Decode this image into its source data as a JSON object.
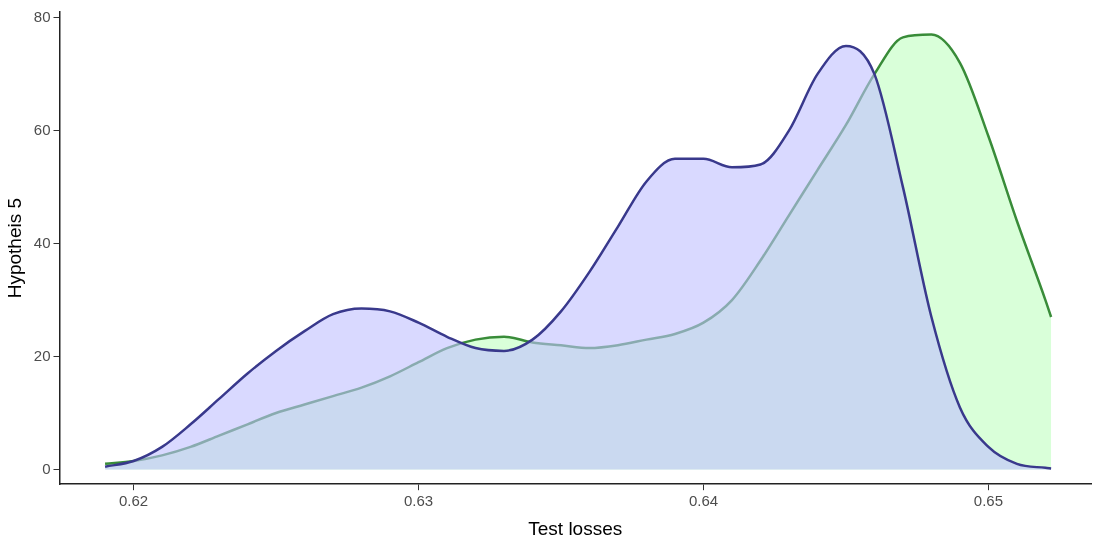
{
  "chart_data": {
    "type": "area",
    "xlabel": "Test losses",
    "ylabel": "Hypotheis 5",
    "x": [
      0.619,
      0.62,
      0.621,
      0.622,
      0.623,
      0.624,
      0.625,
      0.626,
      0.627,
      0.628,
      0.629,
      0.63,
      0.631,
      0.632,
      0.633,
      0.634,
      0.635,
      0.636,
      0.637,
      0.638,
      0.639,
      0.64,
      0.641,
      0.642,
      0.643,
      0.644,
      0.645,
      0.646,
      0.647,
      0.648,
      0.649,
      0.65,
      0.651,
      0.652,
      0.6522
    ],
    "series": [
      {
        "color": "#bfbfff",
        "values": [
          0.5,
          1.5,
          4,
          8,
          12.5,
          17,
          21,
          24.5,
          27.5,
          28.5,
          28,
          26,
          23.5,
          21.5,
          21,
          23,
          28,
          35,
          43,
          51,
          55,
          55,
          53.5,
          54,
          60,
          70,
          75,
          70,
          50,
          27,
          11,
          4,
          1,
          0.3,
          0.2
        ]
      },
      {
        "color": "#bfffbf",
        "values": [
          1,
          1.5,
          2.5,
          4,
          6,
          8,
          10,
          11.5,
          13,
          14.5,
          16.5,
          19,
          21.5,
          23,
          23.5,
          22.5,
          22,
          21.5,
          22,
          23,
          24,
          26,
          30,
          37,
          45,
          53,
          61,
          70,
          76.5,
          77,
          72,
          59,
          44,
          30,
          27
        ]
      }
    ],
    "xlim": [
      0.6174,
      0.6536
    ],
    "xticks": [
      0.62,
      0.63,
      0.64,
      0.65
    ],
    "ylim": [
      -2.6,
      81
    ],
    "yticks": [
      0,
      20,
      40,
      60,
      80
    ],
    "grid": false,
    "legend": false
  }
}
